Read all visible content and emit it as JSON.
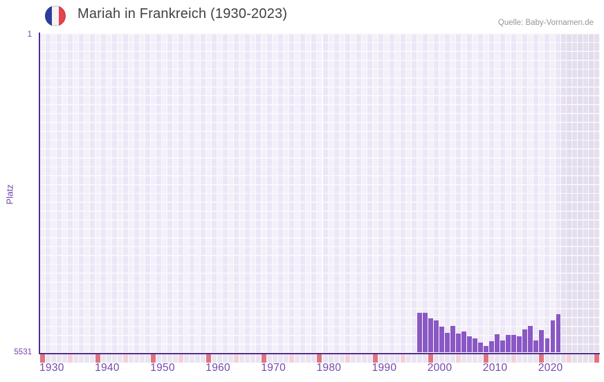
{
  "header": {
    "title": "Mariah in Frankreich (1930-2023)",
    "source": "Quelle: Baby-Vornamen.de"
  },
  "flag_icon": {
    "name": "france-flag-icon",
    "blue": "#2e3d9d",
    "white": "#f4f4f6",
    "red": "#e8424f"
  },
  "chart_data": {
    "type": "bar",
    "title": "Mariah in Frankreich (1930-2023)",
    "ylabel": "Platz",
    "xlabel": "",
    "y_axis": {
      "top_tick": "1",
      "bottom_tick": "5531",
      "min": 1,
      "max": 5531,
      "inverted": true
    },
    "x_axis": {
      "start_year": 1930,
      "end_year": 2030,
      "minor_tick_every": 5,
      "major_tick_every": 10,
      "labels": [
        "1930",
        "1940",
        "1950",
        "1960",
        "1970",
        "1980",
        "1990",
        "2000",
        "2010",
        "2020"
      ],
      "no_data_after": 2023
    },
    "series": [
      {
        "name": "Mariah",
        "x": [
          1998,
          1999,
          2000,
          2001,
          2002,
          2003,
          2004,
          2005,
          2006,
          2007,
          2008,
          2009,
          2010,
          2011,
          2012,
          2013,
          2014,
          2015,
          2016,
          2017,
          2018,
          2019,
          2020,
          2021,
          2022,
          2023
        ],
        "rank": [
          4842,
          4842,
          4945,
          4981,
          5090,
          5198,
          5078,
          5210,
          5174,
          5258,
          5294,
          5366,
          5427,
          5339,
          5224,
          5333,
          5227,
          5230,
          5254,
          5131,
          5074,
          5327,
          5152,
          5297,
          4978,
          4870
        ]
      }
    ],
    "colors": {
      "bar": "#8a58c4",
      "axis": "#532d8e",
      "grid_light": "#f4f0fa",
      "grid_dark": "#ece6f6",
      "grid_gap": "#fbfafd",
      "nodata_light": "#e5dfee",
      "nodata_dark": "#e2dcec",
      "tick_default": "#eae4f2",
      "tick_default_nodata": "#e6e0ec",
      "tick_minor": "#f3d0da",
      "tick_major": "#df737f",
      "year_label": "#7448ab",
      "title_text": "#3f3f3f",
      "source_text": "#979797"
    }
  }
}
